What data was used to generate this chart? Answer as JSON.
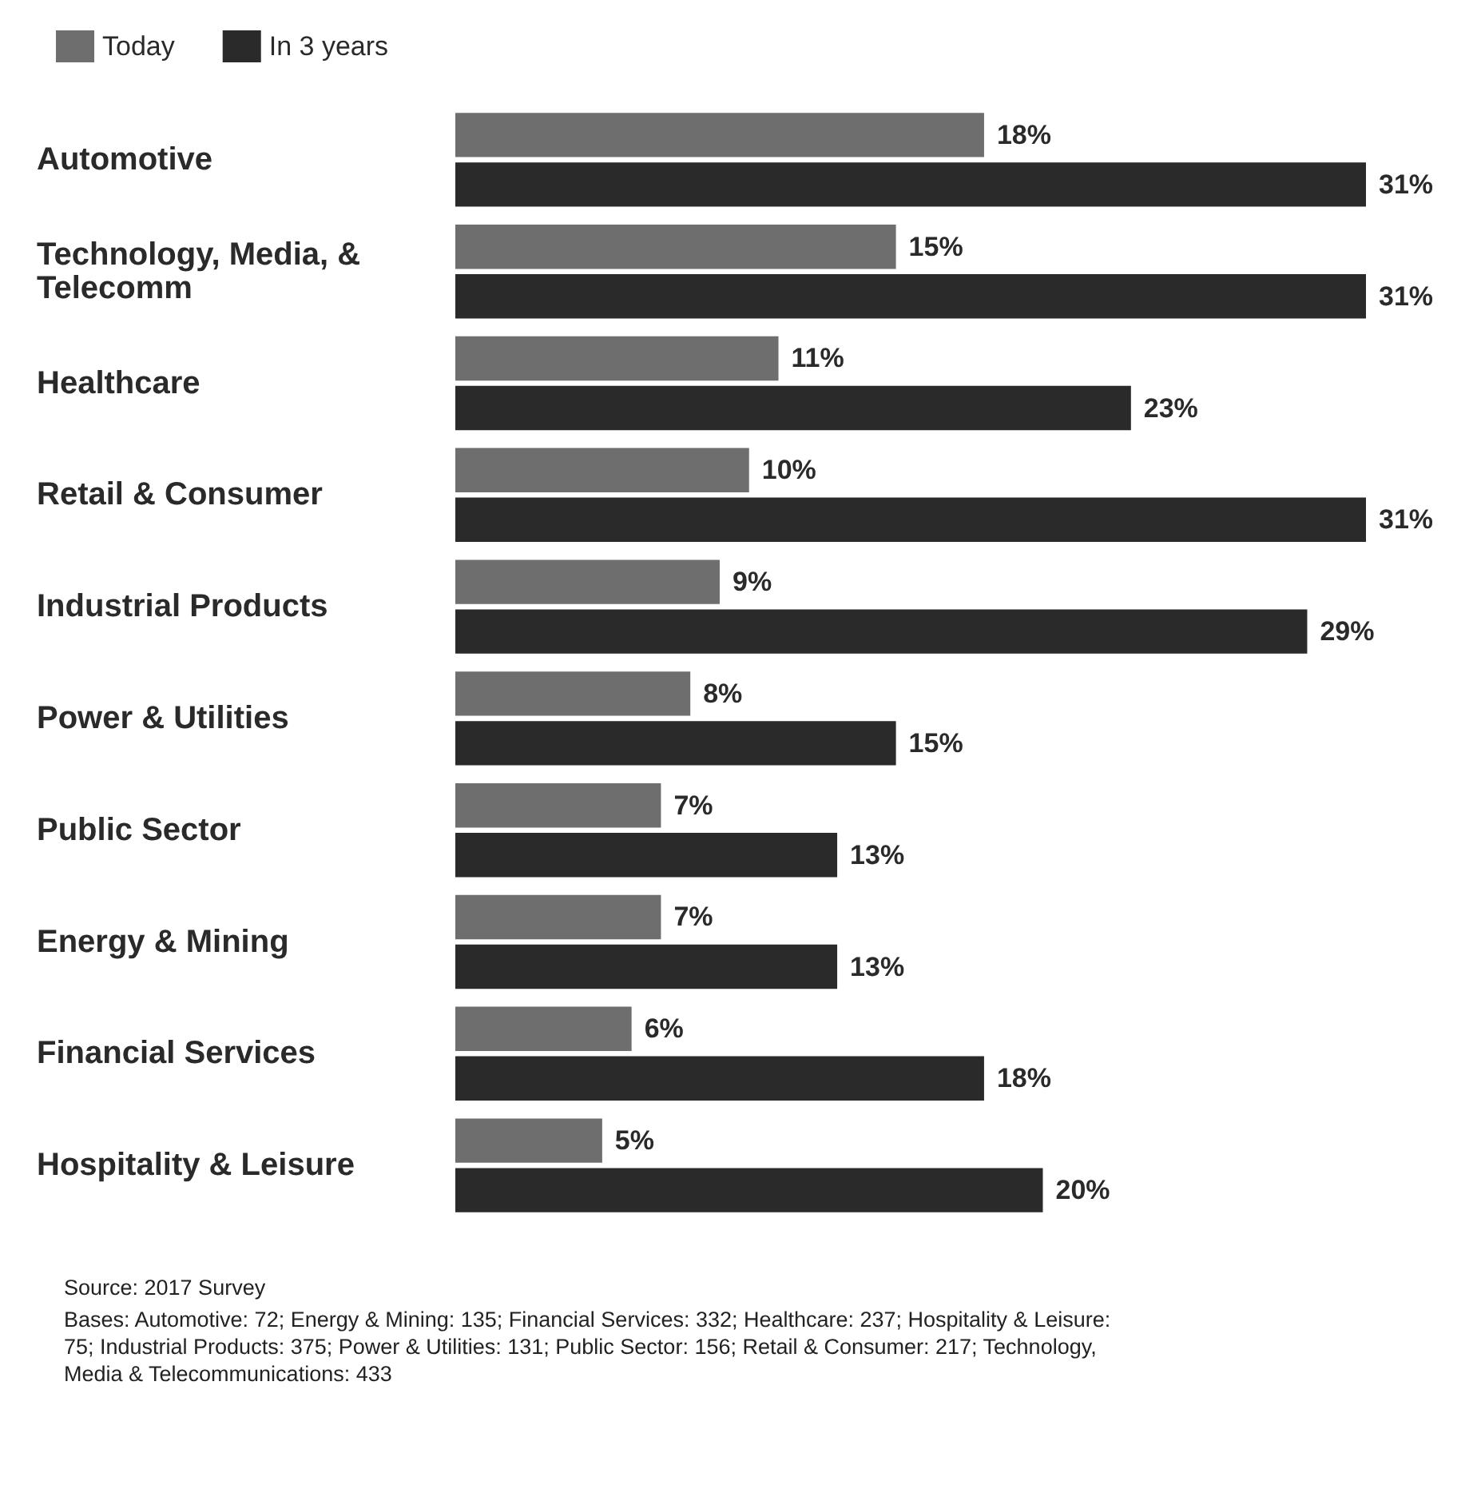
{
  "chart_data": {
    "type": "bar",
    "orientation": "horizontal",
    "categories": [
      "Automotive",
      "Technology, Media, & Telecomm",
      "Healthcare",
      "Retail & Consumer",
      "Industrial Products",
      "Power & Utilities",
      "Public Sector",
      "Energy & Mining",
      "Financial Services",
      "Hospitality & Leisure"
    ],
    "series": [
      {
        "name": "Today",
        "color": "#6e6e6e",
        "values": [
          18,
          15,
          11,
          10,
          9,
          8,
          7,
          7,
          6,
          5
        ],
        "value_labels": [
          "18%",
          "15%",
          "11%",
          "10%",
          "9%",
          "8%",
          "7%",
          "7%",
          "6%",
          "5%"
        ]
      },
      {
        "name": "In 3 years",
        "color": "#2a2a2a",
        "values": [
          31,
          31,
          23,
          31,
          29,
          15,
          13,
          13,
          18,
          20
        ],
        "value_labels": [
          "31%",
          "31%",
          "23%",
          "31%",
          "29%",
          "15%",
          "13%",
          "13%",
          "18%",
          "20%"
        ]
      }
    ],
    "legend": "top left",
    "annotations": [
      "Source: 2017 Survey",
      "Bases: Automotive: 72; Energy & Mining: 135; Financial Services: 332; Healthcare: 237; Hospitality & Leisure: 75; Industrial Products: 375; Power & Utilities: 131; Public Sector: 156; Retail & Consumer: 217; Technology, Media & Telecommunications: 433"
    ]
  }
}
